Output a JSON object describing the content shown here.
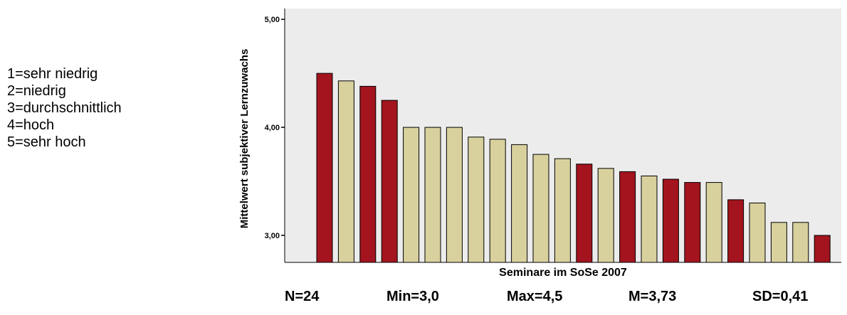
{
  "legend_lines": [
    "1=sehr niedrig",
    "2=niedrig",
    "3=durchschnittlich",
    "4=hoch",
    "5=sehr hoch"
  ],
  "chart_data": {
    "type": "bar",
    "xlabel": "Seminare im SoSe 2007",
    "ylabel": "Mittelwert subjektiver Lernzuwachs",
    "ylim": [
      2.75,
      5.1
    ],
    "yticks": [
      "3,00",
      "4,00",
      "5,00"
    ],
    "ytick_values": [
      3.0,
      4.0,
      5.0
    ],
    "grid": false,
    "background_color": "#ececec",
    "colors": {
      "dark": "#a3141e",
      "light": "#d8d19e"
    },
    "values": [
      4.5,
      4.43,
      4.38,
      4.25,
      4.0,
      4.0,
      4.0,
      3.91,
      3.89,
      3.84,
      3.75,
      3.71,
      3.66,
      3.62,
      3.59,
      3.55,
      3.52,
      3.49,
      3.49,
      3.33,
      3.3,
      3.12,
      3.12,
      3.0
    ],
    "bar_colors": [
      "dark",
      "light",
      "dark",
      "dark",
      "light",
      "light",
      "light",
      "light",
      "light",
      "light",
      "light",
      "light",
      "dark",
      "light",
      "dark",
      "light",
      "dark",
      "dark",
      "light",
      "dark",
      "light",
      "light",
      "light",
      "dark"
    ]
  },
  "stats": {
    "n": "N=24",
    "min": "Min=3,0",
    "max": "Max=4,5",
    "mean": "M=3,73",
    "sd": "SD=0,41"
  }
}
